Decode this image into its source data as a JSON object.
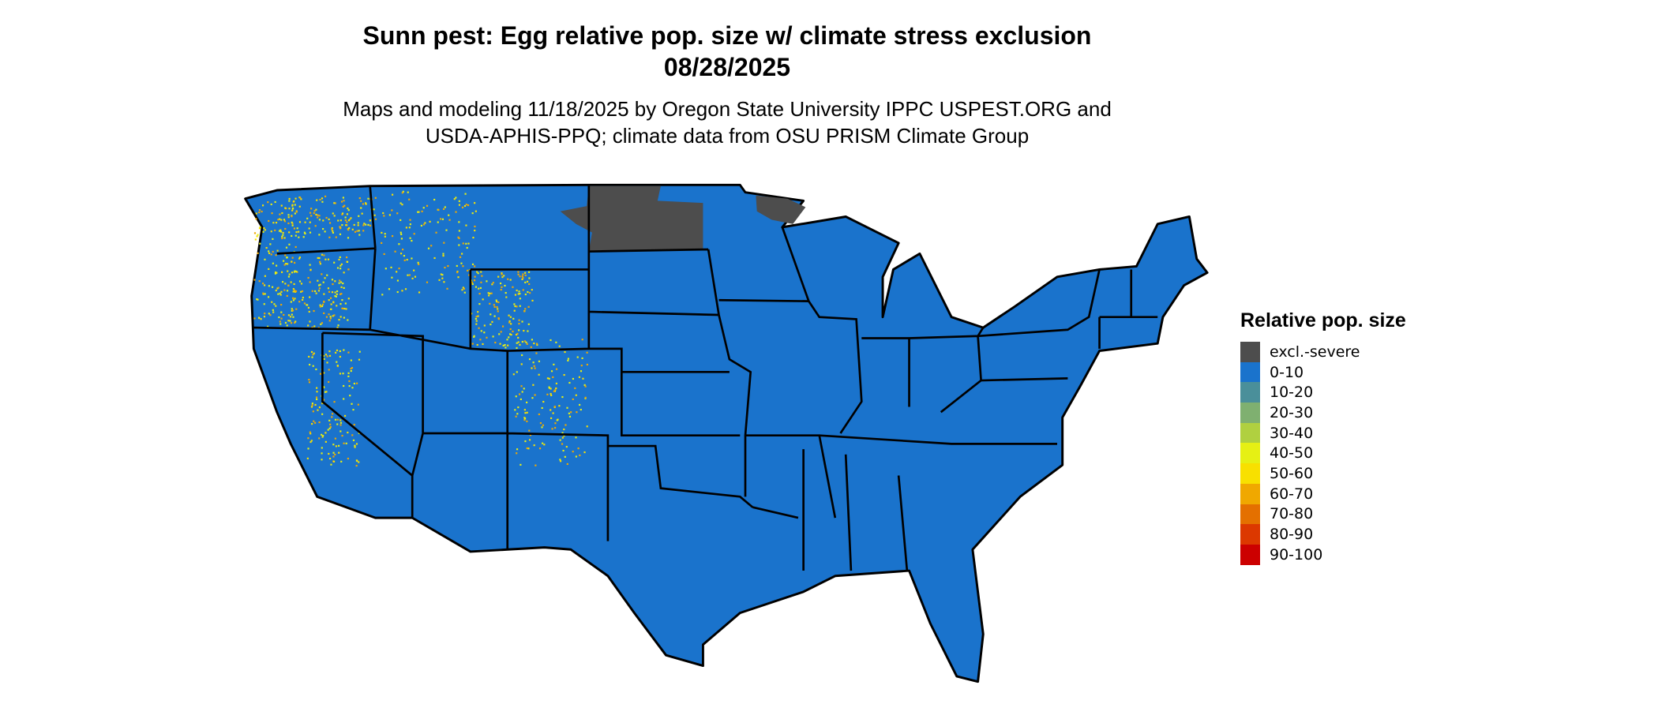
{
  "title": "Sunn pest: Egg relative pop. size w/ climate stress exclusion",
  "date": "08/28/2025",
  "subtitle_line1": "Maps and modeling 11/18/2025 by Oregon State University IPPC USPEST.ORG and",
  "subtitle_line2": "USDA-APHIS-PPQ; climate data from OSU PRISM Climate Group",
  "legend": {
    "title": "Relative pop. size",
    "items": [
      {
        "label": "excl.-severe",
        "color": "#4d4d4d"
      },
      {
        "label": "0-10",
        "color": "#1a73cc"
      },
      {
        "label": "10-20",
        "color": "#4a8f9a"
      },
      {
        "label": "20-30",
        "color": "#7fb070"
      },
      {
        "label": "30-40",
        "color": "#b0d040"
      },
      {
        "label": "40-50",
        "color": "#e6f014"
      },
      {
        "label": "50-60",
        "color": "#f8e000"
      },
      {
        "label": "60-70",
        "color": "#f0a800"
      },
      {
        "label": "70-80",
        "color": "#e47000"
      },
      {
        "label": "80-90",
        "color": "#dc3800"
      },
      {
        "label": "90-100",
        "color": "#cc0000"
      }
    ]
  },
  "map": {
    "region": "Contiguous United States",
    "dominant_class": "0-10",
    "excluded_areas": "North Dakota, northeastern Minnesota",
    "hotspot_class": "60-70",
    "hotspot_areas": "Western mountains (WA, OR, ID, MT, WY, CO, UT, NV, CA)"
  }
}
